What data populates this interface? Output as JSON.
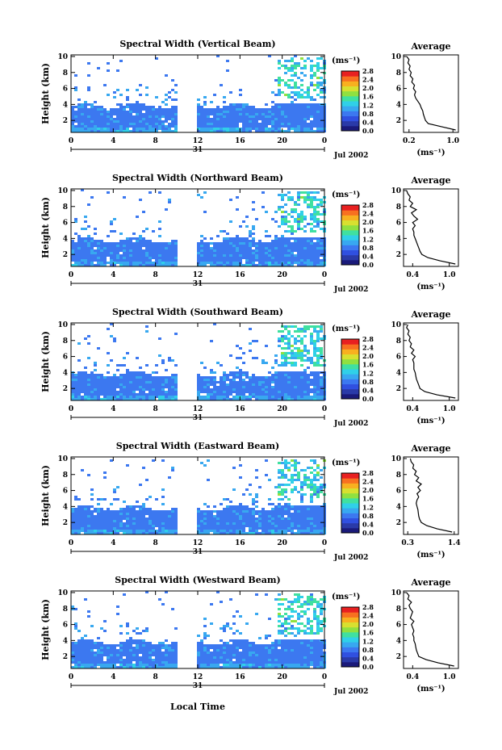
{
  "figure": {
    "time_axis_title": "Local Time",
    "date_label": "Jul 2002",
    "day_label": "31",
    "colorbar_unit": "(ms⁻¹)",
    "profile_title": "Average",
    "profile_xlabel": "(ms⁻¹)"
  },
  "colors": {
    "colormap": [
      "#1a1a7a",
      "#2a3aa8",
      "#3050e0",
      "#3c78f0",
      "#38a8f0",
      "#30d0e8",
      "#40e0a0",
      "#90e040",
      "#d8e030",
      "#f8b020",
      "#f87020",
      "#e82020"
    ]
  },
  "chart_data": [
    {
      "type": "heatmap",
      "title": "Spectral Width (Vertical Beam)",
      "xlabel": "",
      "ylabel": "Height (km)",
      "x_ticks": [
        "0",
        "4",
        "8",
        "12",
        "16",
        "20",
        "0"
      ],
      "xlim": [
        0,
        24
      ],
      "y_ticks": [
        "2",
        "4",
        "6",
        "8",
        "10"
      ],
      "ylim": [
        0.5,
        10.2
      ],
      "colorbar": {
        "ticks": [
          "0.0",
          "0.4",
          "0.8",
          "1.2",
          "1.6",
          "2.0",
          "2.4",
          "2.8"
        ],
        "range": [
          0,
          2.8
        ]
      },
      "data_gap_hours": [
        10.2,
        11.8
      ],
      "profile": {
        "title": "Average",
        "xticks": [
          "0.2",
          "1.0"
        ],
        "xlim": [
          0.1,
          1.1
        ],
        "height": [
          0.8,
          1.2,
          1.6,
          2.0,
          2.4,
          2.8,
          3.2,
          3.6,
          4.0,
          4.4,
          4.8,
          5.2,
          5.6,
          6.0,
          6.4,
          6.8,
          7.2,
          7.6,
          8.0,
          8.4,
          8.8,
          9.2,
          9.6,
          10.0
        ],
        "values": [
          1.05,
          0.8,
          0.55,
          0.5,
          0.48,
          0.46,
          0.45,
          0.42,
          0.4,
          0.36,
          0.32,
          0.3,
          0.32,
          0.28,
          0.3,
          0.25,
          0.27,
          0.22,
          0.24,
          0.2,
          0.22,
          0.18,
          0.2,
          0.16
        ]
      }
    },
    {
      "type": "heatmap",
      "title": "Spectral Width (Northward Beam)",
      "xlabel": "",
      "ylabel": "Height (km)",
      "x_ticks": [
        "0",
        "4",
        "8",
        "12",
        "16",
        "20",
        "0"
      ],
      "xlim": [
        0,
        24
      ],
      "y_ticks": [
        "2",
        "4",
        "6",
        "8",
        "10"
      ],
      "ylim": [
        0.5,
        10.2
      ],
      "colorbar": {
        "ticks": [
          "0.0",
          "0.4",
          "0.8",
          "1.2",
          "1.6",
          "2.0",
          "2.4",
          "2.8"
        ],
        "range": [
          0,
          2.8
        ]
      },
      "data_gap_hours": [
        10.2,
        11.8
      ],
      "profile": {
        "title": "Average",
        "xticks": [
          "0.4",
          "1.0"
        ],
        "xlim": [
          0.25,
          1.15
        ],
        "height": [
          0.8,
          1.2,
          1.6,
          2.0,
          2.4,
          2.8,
          3.2,
          3.6,
          4.0,
          4.4,
          4.8,
          5.2,
          5.6,
          6.0,
          6.4,
          6.8,
          7.2,
          7.6,
          8.0,
          8.4,
          8.8,
          9.2,
          9.6,
          10.0
        ],
        "values": [
          1.1,
          0.85,
          0.65,
          0.55,
          0.52,
          0.5,
          0.48,
          0.46,
          0.44,
          0.42,
          0.42,
          0.4,
          0.44,
          0.4,
          0.48,
          0.42,
          0.38,
          0.46,
          0.36,
          0.4,
          0.34,
          0.36,
          0.32,
          0.3
        ]
      }
    },
    {
      "type": "heatmap",
      "title": "Spectral Width (Southward Beam)",
      "xlabel": "",
      "ylabel": "Height (km)",
      "x_ticks": [
        "0",
        "4",
        "8",
        "12",
        "16",
        "20",
        "0"
      ],
      "xlim": [
        0,
        24
      ],
      "y_ticks": [
        "2",
        "4",
        "6",
        "8",
        "10"
      ],
      "ylim": [
        0.5,
        10.2
      ],
      "colorbar": {
        "ticks": [
          "0.0",
          "0.4",
          "0.8",
          "1.2",
          "1.6",
          "2.0",
          "2.4",
          "2.8"
        ],
        "range": [
          0,
          2.8
        ]
      },
      "data_gap_hours": [
        10.2,
        11.8
      ],
      "profile": {
        "title": "Average",
        "xticks": [
          "0.4",
          "1.0"
        ],
        "xlim": [
          0.25,
          1.15
        ],
        "height": [
          0.8,
          1.2,
          1.6,
          2.0,
          2.4,
          2.8,
          3.2,
          3.6,
          4.0,
          4.4,
          4.8,
          5.2,
          5.6,
          6.0,
          6.4,
          6.8,
          7.2,
          7.6,
          8.0,
          8.4,
          8.8,
          9.2,
          9.6,
          10.0
        ],
        "values": [
          1.1,
          0.8,
          0.6,
          0.52,
          0.5,
          0.48,
          0.46,
          0.45,
          0.44,
          0.42,
          0.42,
          0.42,
          0.4,
          0.44,
          0.38,
          0.42,
          0.36,
          0.38,
          0.34,
          0.36,
          0.32,
          0.34,
          0.3,
          0.32
        ]
      }
    },
    {
      "type": "heatmap",
      "title": "Spectral Width (Eastward Beam)",
      "xlabel": "",
      "ylabel": "Height (km)",
      "x_ticks": [
        "0",
        "4",
        "8",
        "12",
        "16",
        "20",
        "0"
      ],
      "xlim": [
        0,
        24
      ],
      "y_ticks": [
        "2",
        "4",
        "6",
        "8",
        "10"
      ],
      "ylim": [
        0.5,
        10.2
      ],
      "colorbar": {
        "ticks": [
          "0.0",
          "0.4",
          "0.8",
          "1.2",
          "1.6",
          "2.0",
          "2.4",
          "2.8"
        ],
        "range": [
          0,
          2.8
        ]
      },
      "data_gap_hours": [
        10.2,
        11.8
      ],
      "profile": {
        "title": "Average",
        "xticks": [
          "0.3",
          "1.4"
        ],
        "xlim": [
          0.2,
          1.5
        ],
        "height": [
          0.8,
          1.2,
          1.6,
          2.0,
          2.4,
          2.8,
          3.2,
          3.6,
          4.0,
          4.4,
          4.8,
          5.2,
          5.6,
          6.0,
          6.4,
          6.8,
          7.2,
          7.6,
          8.0,
          8.4,
          8.8,
          9.2,
          9.6,
          10.0
        ],
        "values": [
          1.35,
          1.0,
          0.75,
          0.62,
          0.58,
          0.56,
          0.55,
          0.54,
          0.52,
          0.5,
          0.52,
          0.56,
          0.52,
          0.6,
          0.54,
          0.62,
          0.5,
          0.56,
          0.46,
          0.5,
          0.42,
          0.44,
          0.38,
          0.36
        ]
      }
    },
    {
      "type": "heatmap",
      "title": "Spectral Width (Westward Beam)",
      "xlabel": "Local Time",
      "ylabel": "Height (km)",
      "x_ticks": [
        "0",
        "4",
        "8",
        "12",
        "16",
        "20",
        "0"
      ],
      "xlim": [
        0,
        24
      ],
      "y_ticks": [
        "2",
        "4",
        "6",
        "8",
        "10"
      ],
      "ylim": [
        0.5,
        10.2
      ],
      "colorbar": {
        "ticks": [
          "0.0",
          "0.4",
          "0.8",
          "1.2",
          "1.6",
          "2.0",
          "2.4",
          "2.8"
        ],
        "range": [
          0,
          2.8
        ]
      },
      "data_gap_hours": [
        10.2,
        11.8
      ],
      "profile": {
        "title": "Average",
        "xticks": [
          "0.4",
          "1.0"
        ],
        "xlim": [
          0.25,
          1.15
        ],
        "height": [
          0.8,
          1.2,
          1.6,
          2.0,
          2.4,
          2.8,
          3.2,
          3.6,
          4.0,
          4.4,
          4.8,
          5.2,
          5.6,
          6.0,
          6.4,
          6.8,
          7.2,
          7.6,
          8.0,
          8.4,
          8.8,
          9.2,
          9.6,
          10.0
        ],
        "values": [
          1.08,
          0.82,
          0.62,
          0.5,
          0.48,
          0.46,
          0.45,
          0.44,
          0.42,
          0.42,
          0.4,
          0.42,
          0.4,
          0.38,
          0.42,
          0.36,
          0.38,
          0.4,
          0.36,
          0.34,
          0.38,
          0.32,
          0.34,
          0.3
        ]
      }
    }
  ]
}
